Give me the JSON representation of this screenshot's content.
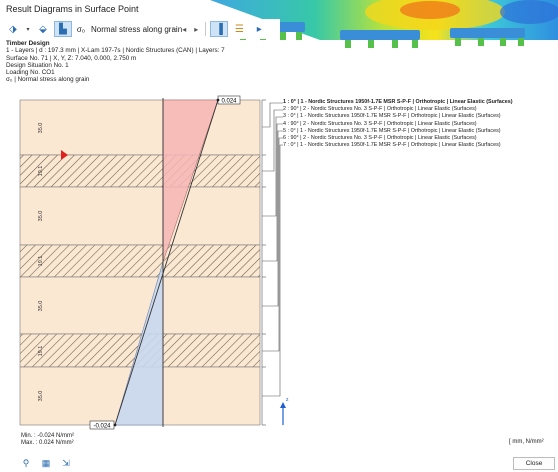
{
  "window": {
    "title": "Result Diagrams in Surface Point"
  },
  "toolbar": {
    "result_symbol": "σ₀",
    "result_type": "Normal stress along grain",
    "dropdown_icon": "chevron-down-icon",
    "prev_icon": "triangle-left-icon",
    "next_icon": "triangle-right-icon"
  },
  "info": {
    "module": "Timber Design",
    "layers": "1 - Layers | d : 197.3 mm | X-Lam 197-7s | Nordic Structures (CAN) | Layers: 7",
    "surface": "Surface No. 71 | X, Y, Z: 7.040, 0.000, 2.750 m",
    "design_situation": "Design Situation No. 1",
    "loading": "Loading No. CO1",
    "result": "σ₀ | Normal stress along grain"
  },
  "diagram": {
    "layer_thickness_labels": [
      "35.0",
      "19.1",
      "35.0",
      "19.1",
      "35.0",
      "19.1",
      "35.0"
    ],
    "top_value": "0.024",
    "bottom_value": "-0.024",
    "axis_label": "z"
  },
  "legend": {
    "items": [
      "1 :    0° | 1 - Nordic Structures 1950f-1.7E MSR S-P-F | Orthotropic | Linear Elastic (Surfaces)",
      "2 :  90° | 2 - Nordic Structures No. 3 S-P-F | Orthotropic | Linear Elastic (Surfaces)",
      "3 :    0° | 1 - Nordic Structures 1950f-1.7E MSR S-P-F | Orthotropic | Linear Elastic (Surfaces)",
      "4 :  90° | 2 - Nordic Structures No. 3 S-P-F | Orthotropic | Linear Elastic (Surfaces)",
      "5 :    0° | 1 - Nordic Structures 1950f-1.7E MSR S-P-F | Orthotropic | Linear Elastic (Surfaces)",
      "6 :  90° | 2 - Nordic Structures No. 3 S-P-F | Orthotropic | Linear Elastic (Surfaces)",
      "7 :    0° | 1 - Nordic Structures 1950f-1.7E MSR S-P-F | Orthotropic | Linear Elastic (Surfaces)"
    ]
  },
  "summary": {
    "min": "Min. : -0.024 N/mm²",
    "max": "Max. :  0.024 N/mm²",
    "units": "[ mm, N/mm²"
  },
  "buttons": {
    "close": "Close"
  },
  "colors": {
    "layer_fill": "#fbe8d2",
    "tension_fill": "#f5b5b5",
    "compression_fill": "#c8d8f0",
    "marker": "#e02020",
    "axis_arrow": "#1f5fd0"
  },
  "bottom_toolbar": [
    "search-icon",
    "table-icon",
    "export-icon"
  ]
}
